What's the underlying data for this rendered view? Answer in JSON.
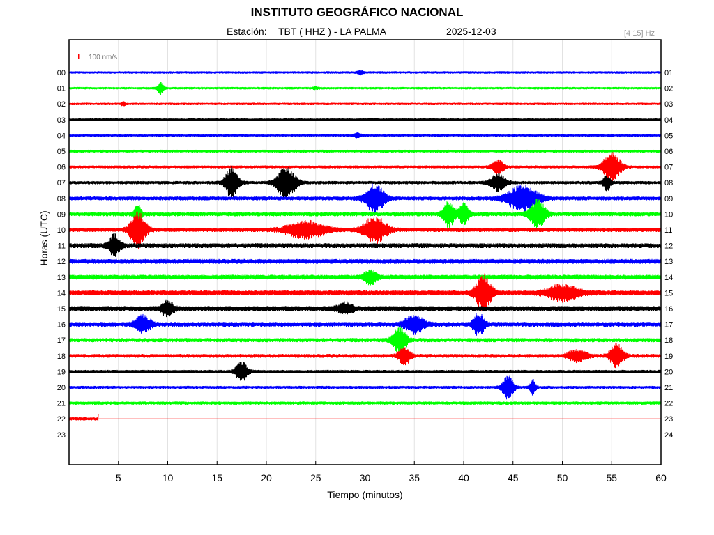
{
  "header": {
    "title": "INSTITUTO GEOGRÁFICO NACIONAL",
    "station_label": "Estación:",
    "station": "TBT ( HHZ ) - LA PALMA",
    "date": "2025-12-03",
    "band": "[4 15] Hz"
  },
  "scale_label": "100 nm/s",
  "colors": {
    "blue": "#0000ff",
    "green": "#00ff00",
    "red": "#ff0000",
    "black": "#000000"
  },
  "chart_data": {
    "type": "line",
    "title": "INSTITUTO GEOGRÁFICO NACIONAL",
    "xlabel": "Tiempo (minutos)",
    "ylabel": "Horas (UTC)",
    "xlim": [
      0,
      60
    ],
    "x_ticks": [
      5,
      10,
      15,
      20,
      25,
      30,
      35,
      40,
      45,
      50,
      55,
      60
    ],
    "grid": true,
    "left_labels": [
      "00",
      "01",
      "02",
      "03",
      "04",
      "05",
      "06",
      "07",
      "08",
      "09",
      "10",
      "11",
      "12",
      "13",
      "14",
      "15",
      "16",
      "17",
      "18",
      "19",
      "20",
      "21",
      "22",
      "23"
    ],
    "right_labels": [
      "01",
      "02",
      "03",
      "04",
      "05",
      "06",
      "07",
      "08",
      "09",
      "10",
      "11",
      "12",
      "13",
      "14",
      "15",
      "16",
      "17",
      "18",
      "19",
      "20",
      "21",
      "22",
      "23",
      "24"
    ],
    "color_cycle": [
      "blue",
      "green",
      "red",
      "black"
    ],
    "traces": [
      {
        "hour": "00",
        "color": "blue",
        "end": 60,
        "noise": 0.12,
        "events": [
          [
            29.5,
            0.3,
            0.3
          ]
        ]
      },
      {
        "hour": "01",
        "color": "green",
        "end": 60,
        "noise": 0.12,
        "events": [
          [
            9.3,
            0.35,
            0.9
          ],
          [
            25,
            0.3,
            0.2
          ]
        ]
      },
      {
        "hour": "02",
        "color": "red",
        "end": 60,
        "noise": 0.12,
        "events": [
          [
            5.5,
            0.2,
            0.3
          ]
        ]
      },
      {
        "hour": "03",
        "color": "black",
        "end": 60,
        "noise": 0.18,
        "events": []
      },
      {
        "hour": "04",
        "color": "blue",
        "end": 60,
        "noise": 0.12,
        "events": [
          [
            29.2,
            0.4,
            0.35
          ]
        ]
      },
      {
        "hour": "05",
        "color": "green",
        "end": 60,
        "noise": 0.18,
        "events": []
      },
      {
        "hour": "06",
        "color": "red",
        "end": 60,
        "noise": 0.2,
        "events": [
          [
            43.5,
            0.6,
            1.2
          ],
          [
            55,
            0.9,
            2.4
          ]
        ]
      },
      {
        "hour": "07",
        "color": "black",
        "end": 60,
        "noise": 0.25,
        "events": [
          [
            16.5,
            0.7,
            2.5
          ],
          [
            22,
            1.0,
            2.4
          ],
          [
            43.5,
            0.8,
            1.3
          ],
          [
            54.5,
            0.4,
            1.2
          ]
        ]
      },
      {
        "hour": "08",
        "color": "blue",
        "end": 60,
        "noise": 0.35,
        "events": [
          [
            31,
            1.0,
            2.3
          ],
          [
            46,
            1.6,
            2.0
          ]
        ]
      },
      {
        "hour": "09",
        "color": "green",
        "end": 60,
        "noise": 0.4,
        "events": [
          [
            7,
            0.35,
            1.8
          ],
          [
            38.5,
            0.6,
            2.0
          ],
          [
            40,
            0.5,
            1.6
          ],
          [
            47.5,
            0.8,
            2.2
          ]
        ]
      },
      {
        "hour": "10",
        "color": "red",
        "end": 60,
        "noise": 0.4,
        "events": [
          [
            7,
            0.8,
            2.8
          ],
          [
            24,
            2.0,
            1.3
          ],
          [
            31,
            1.2,
            2.1
          ]
        ]
      },
      {
        "hour": "11",
        "color": "black",
        "end": 60,
        "noise": 0.5,
        "events": [
          [
            4.6,
            0.6,
            1.7
          ]
        ]
      },
      {
        "hour": "12",
        "color": "blue",
        "end": 60,
        "noise": 0.5,
        "events": []
      },
      {
        "hour": "13",
        "color": "green",
        "end": 60,
        "noise": 0.5,
        "events": [
          [
            30.5,
            0.6,
            1.2
          ]
        ]
      },
      {
        "hour": "14",
        "color": "red",
        "end": 60,
        "noise": 0.55,
        "events": [
          [
            42,
            0.8,
            2.8
          ],
          [
            50,
            1.6,
            1.2
          ]
        ]
      },
      {
        "hour": "15",
        "color": "black",
        "end": 60,
        "noise": 0.55,
        "events": [
          [
            10,
            0.6,
            1.2
          ],
          [
            28,
            0.8,
            0.8
          ]
        ]
      },
      {
        "hour": "16",
        "color": "blue",
        "end": 60,
        "noise": 0.5,
        "events": [
          [
            7.5,
            0.8,
            1.3
          ],
          [
            35,
            1.0,
            1.4
          ],
          [
            41.5,
            0.6,
            1.7
          ]
        ]
      },
      {
        "hour": "17",
        "color": "green",
        "end": 60,
        "noise": 0.4,
        "events": [
          [
            33.5,
            0.7,
            2.0
          ]
        ]
      },
      {
        "hour": "18",
        "color": "red",
        "end": 60,
        "noise": 0.35,
        "events": [
          [
            34,
            0.6,
            1.4
          ],
          [
            51.5,
            1.0,
            0.9
          ],
          [
            55.5,
            0.7,
            1.8
          ]
        ]
      },
      {
        "hour": "19",
        "color": "black",
        "end": 60,
        "noise": 0.3,
        "events": [
          [
            17.5,
            0.6,
            1.6
          ]
        ]
      },
      {
        "hour": "20",
        "color": "blue",
        "end": 60,
        "noise": 0.2,
        "events": [
          [
            44.5,
            0.6,
            1.9
          ],
          [
            47,
            0.3,
            1.2
          ]
        ]
      },
      {
        "hour": "21",
        "color": "green",
        "end": 60,
        "noise": 0.25,
        "events": []
      },
      {
        "hour": "22",
        "color": "red",
        "end": 3,
        "noise": 0.25,
        "events": [
          [
            3,
            0.05,
            1.5
          ]
        ]
      },
      {
        "hour": "23",
        "color": "black",
        "end": 0,
        "noise": 0,
        "events": []
      }
    ]
  }
}
